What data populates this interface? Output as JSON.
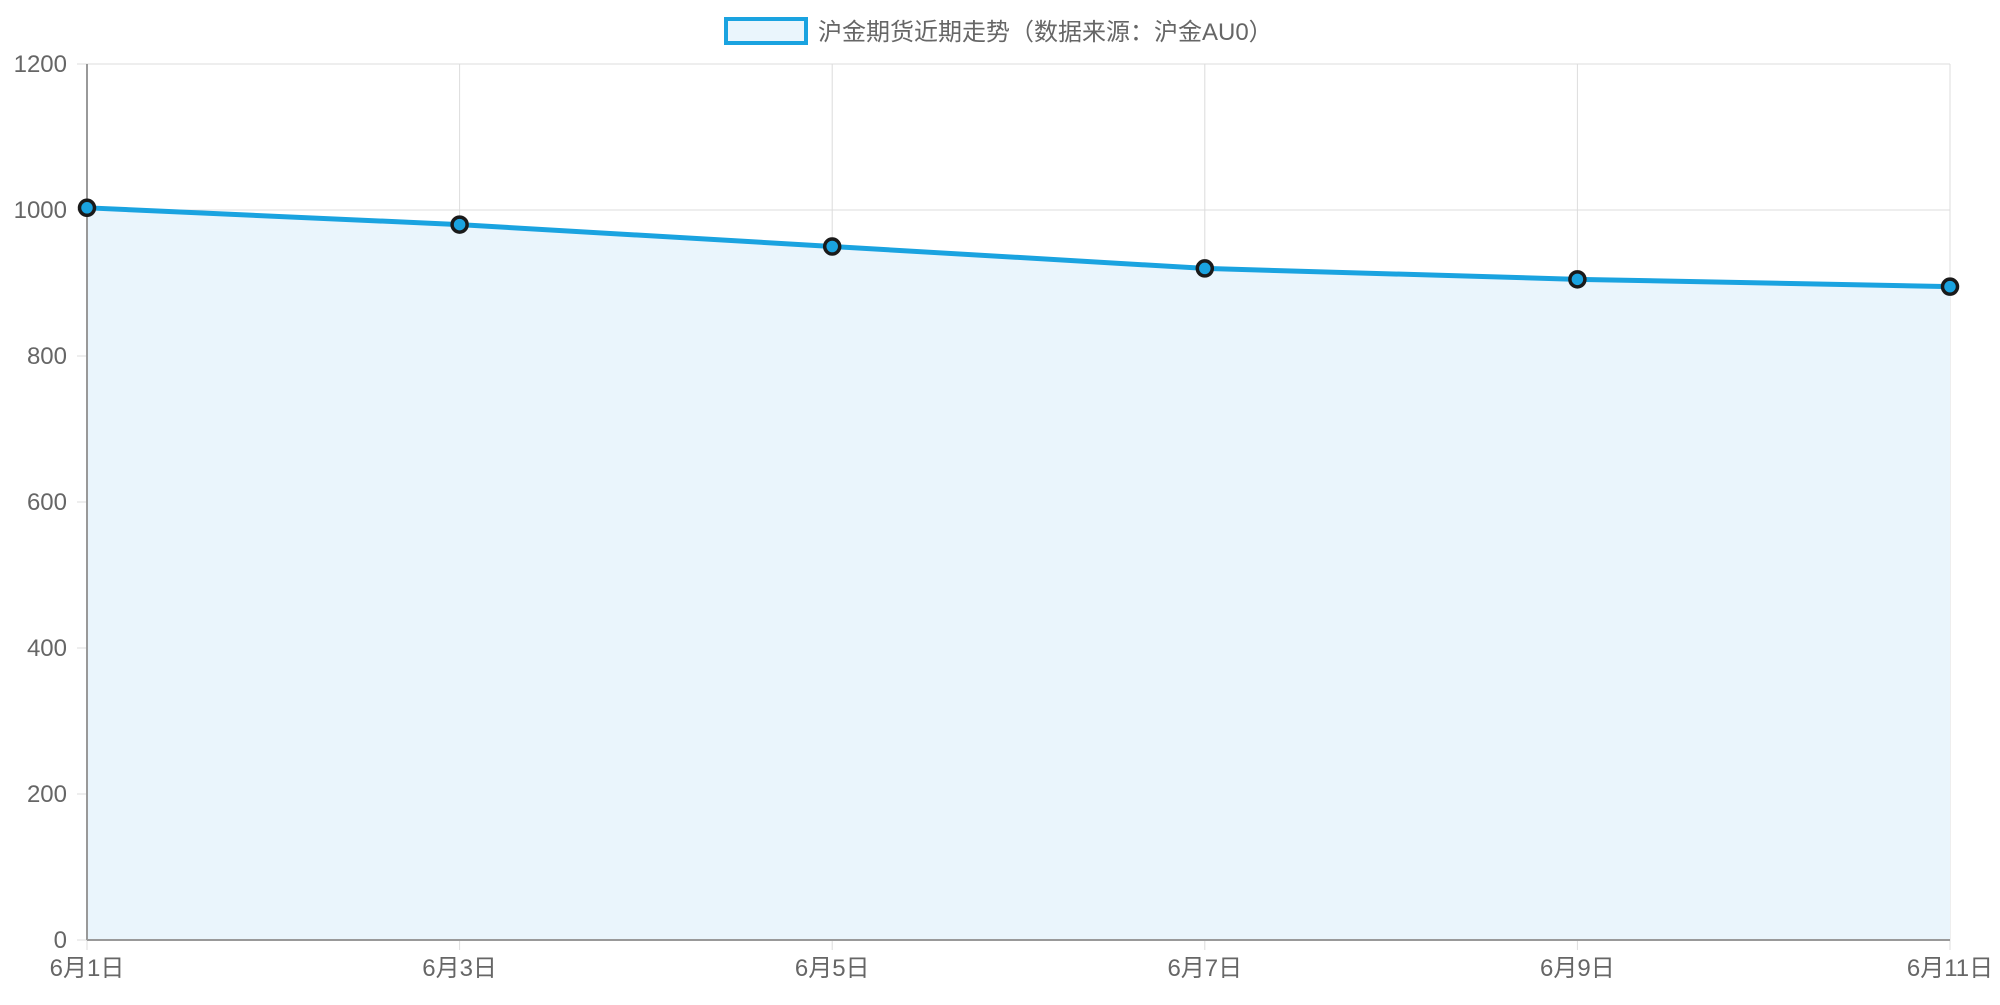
{
  "chart_data": {
    "type": "area",
    "categories": [
      "6月1日",
      "6月3日",
      "6月5日",
      "6月7日",
      "6月9日",
      "6月11日"
    ],
    "series": [
      {
        "name": "沪金期货近期走势（数据来源：沪金AU0）",
        "values": [
          1003,
          980,
          950,
          920,
          905,
          895
        ]
      }
    ],
    "ylim": [
      0,
      1200
    ],
    "yticks": [
      0,
      200,
      400,
      600,
      800,
      1000,
      1200
    ],
    "grid": true,
    "legend_position": "top-center",
    "colors": {
      "line": "#1aa3e0",
      "fill": "#eaf5fc",
      "point_border": "#1a1a1a",
      "grid": "#dcdcdc",
      "axis": "#999999",
      "text": "#666666"
    }
  }
}
